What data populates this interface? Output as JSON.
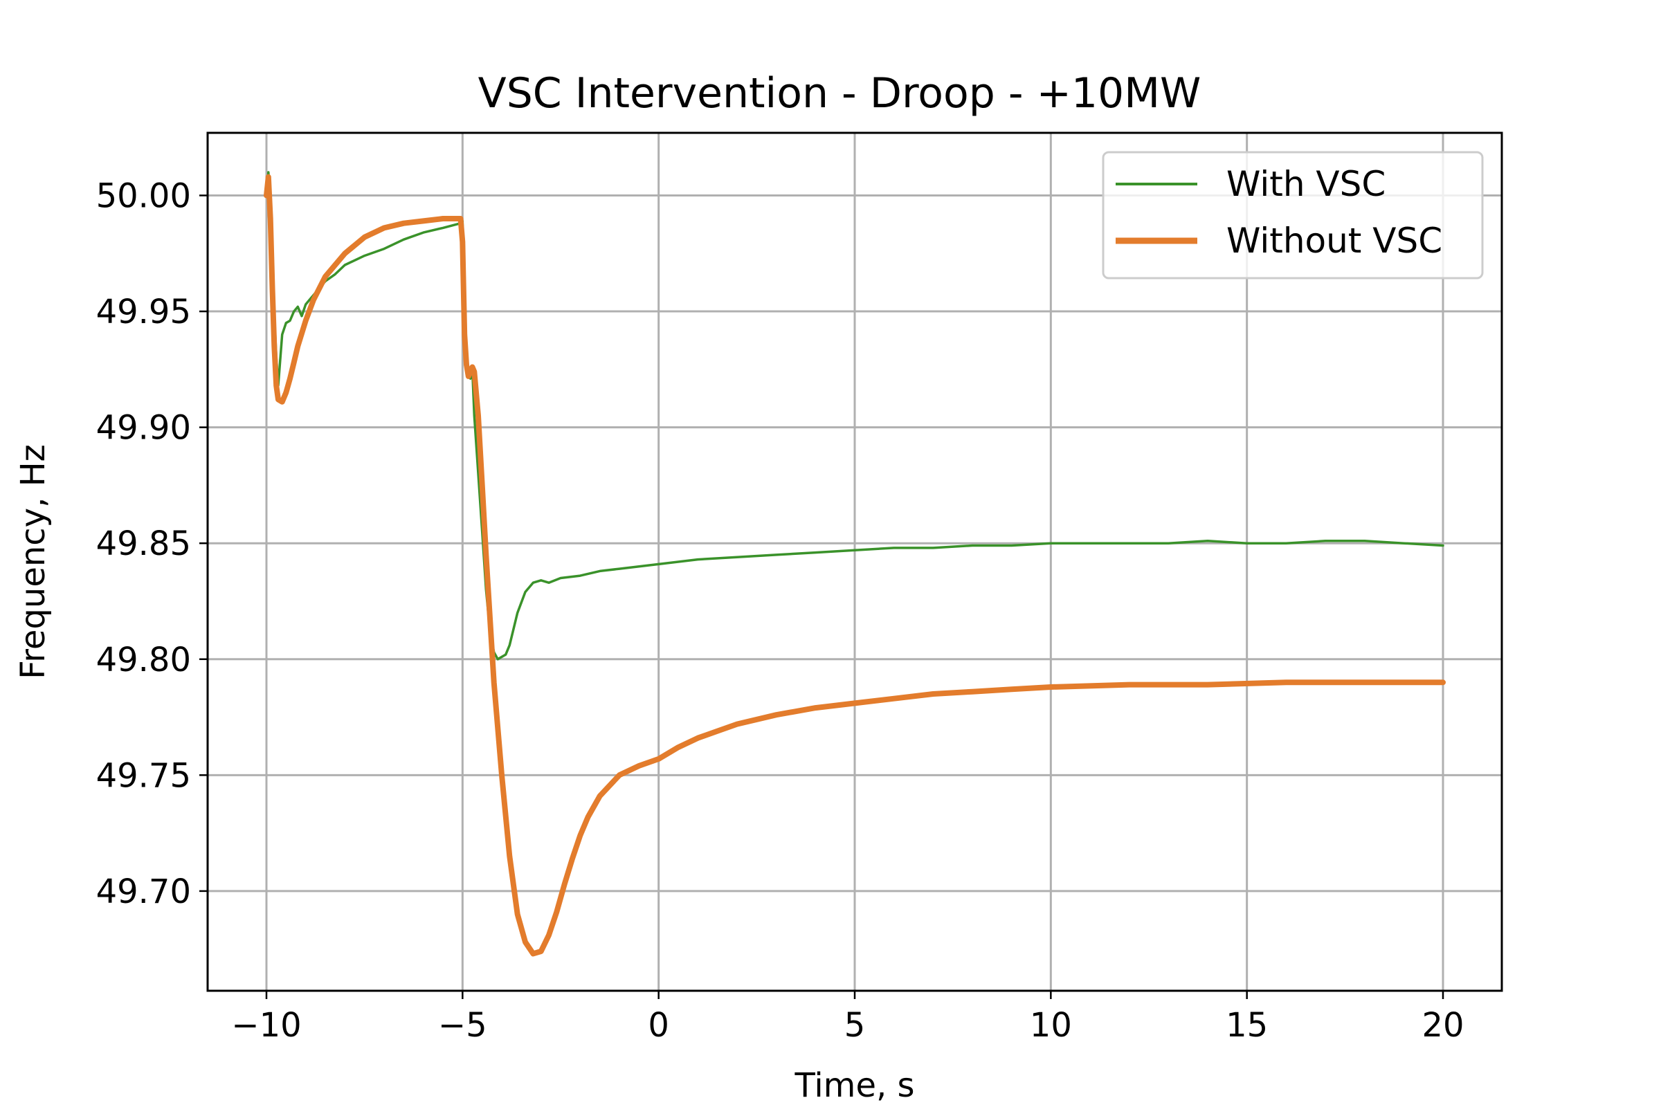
{
  "chart_data": {
    "type": "line",
    "title": "VSC Intervention - Droop - +10MW",
    "xlabel": "Time, s",
    "ylabel": "Frequency, Hz",
    "xlim": [
      -11.5,
      21.5
    ],
    "ylim": [
      49.657,
      50.027
    ],
    "xticks": [
      -10,
      -5,
      0,
      5,
      10,
      15,
      20
    ],
    "xtick_labels": [
      "−10",
      "−5",
      "0",
      "5",
      "10",
      "15",
      "20"
    ],
    "yticks": [
      49.7,
      49.75,
      49.8,
      49.85,
      49.9,
      49.95,
      50.0
    ],
    "ytick_labels": [
      "49.70",
      "49.75",
      "49.80",
      "49.85",
      "49.90",
      "49.95",
      "50.00"
    ],
    "grid": true,
    "legend_position": "top-right",
    "series": [
      {
        "name": "With VSC",
        "color": "#3a922a",
        "line_width": "thin",
        "x": [
          -10,
          -9.95,
          -9.9,
          -9.85,
          -9.8,
          -9.75,
          -9.7,
          -9.6,
          -9.5,
          -9.4,
          -9.3,
          -9.2,
          -9.1,
          -9.0,
          -8.9,
          -8.75,
          -8.5,
          -8.25,
          -8.0,
          -7.5,
          -7.0,
          -6.5,
          -6.0,
          -5.5,
          -5.05,
          -5.0,
          -4.95,
          -4.9,
          -4.85,
          -4.8,
          -4.75,
          -4.7,
          -4.6,
          -4.5,
          -4.4,
          -4.3,
          -4.2,
          -4.1,
          -4.0,
          -3.9,
          -3.8,
          -3.6,
          -3.4,
          -3.2,
          -3.0,
          -2.8,
          -2.5,
          -2.0,
          -1.5,
          -1.0,
          -0.5,
          0.0,
          1.0,
          2.0,
          3.0,
          4.0,
          5.0,
          6.0,
          7.0,
          8.0,
          9.0,
          10.0,
          11.0,
          12.0,
          13.0,
          14.0,
          15.0,
          16.0,
          17.0,
          18.0,
          19.0,
          20.0
        ],
        "y": [
          50.0,
          50.01,
          49.995,
          49.975,
          49.95,
          49.93,
          49.918,
          49.94,
          49.945,
          49.946,
          49.95,
          49.952,
          49.948,
          49.953,
          49.955,
          49.958,
          49.963,
          49.966,
          49.97,
          49.974,
          49.977,
          49.981,
          49.984,
          49.986,
          49.988,
          49.989,
          49.95,
          49.93,
          49.922,
          49.921,
          49.925,
          49.905,
          49.88,
          49.855,
          49.83,
          49.812,
          49.803,
          49.8,
          49.801,
          49.802,
          49.806,
          49.82,
          49.829,
          49.833,
          49.834,
          49.833,
          49.835,
          49.836,
          49.838,
          49.839,
          49.84,
          49.841,
          49.843,
          49.844,
          49.845,
          49.846,
          49.847,
          49.848,
          49.848,
          49.849,
          49.849,
          49.85,
          49.85,
          49.85,
          49.85,
          49.851,
          49.85,
          49.85,
          49.851,
          49.851,
          49.85,
          49.849
        ]
      },
      {
        "name": "Without VSC",
        "color": "#e37c2c",
        "line_width": "thick",
        "x": [
          -10,
          -9.95,
          -9.9,
          -9.85,
          -9.8,
          -9.75,
          -9.7,
          -9.6,
          -9.5,
          -9.4,
          -9.3,
          -9.2,
          -9.0,
          -8.8,
          -8.5,
          -8.0,
          -7.5,
          -7.0,
          -6.5,
          -6.0,
          -5.5,
          -5.05,
          -5.0,
          -4.95,
          -4.9,
          -4.85,
          -4.8,
          -4.75,
          -4.7,
          -4.6,
          -4.5,
          -4.4,
          -4.2,
          -4.0,
          -3.8,
          -3.6,
          -3.4,
          -3.2,
          -3.0,
          -2.8,
          -2.6,
          -2.4,
          -2.2,
          -2.0,
          -1.8,
          -1.5,
          -1.0,
          -0.5,
          0.0,
          0.5,
          1.0,
          1.5,
          2.0,
          3.0,
          4.0,
          5.0,
          6.0,
          7.0,
          8.0,
          9.0,
          10.0,
          12.0,
          14.0,
          16.0,
          18.0,
          20.0
        ],
        "y": [
          50.0,
          50.008,
          49.99,
          49.96,
          49.935,
          49.918,
          49.912,
          49.911,
          49.915,
          49.921,
          49.928,
          49.935,
          49.946,
          49.955,
          49.965,
          49.975,
          49.982,
          49.986,
          49.988,
          49.989,
          49.99,
          49.99,
          49.98,
          49.94,
          49.927,
          49.922,
          49.924,
          49.926,
          49.924,
          49.905,
          49.875,
          49.845,
          49.79,
          49.75,
          49.715,
          49.69,
          49.678,
          49.673,
          49.674,
          49.681,
          49.691,
          49.703,
          49.714,
          49.724,
          49.732,
          49.741,
          49.75,
          49.754,
          49.757,
          49.762,
          49.766,
          49.769,
          49.772,
          49.776,
          49.779,
          49.781,
          49.783,
          49.785,
          49.786,
          49.787,
          49.788,
          49.789,
          49.789,
          49.79,
          49.79,
          49.79
        ]
      }
    ]
  }
}
